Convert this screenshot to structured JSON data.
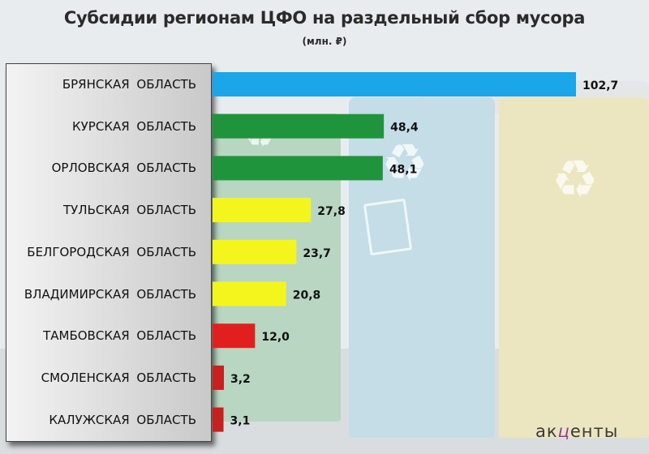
{
  "title": "Субсидии регионам ЦФО на раздельный сбор мусора",
  "subtitle": "(млн. ₽)",
  "logo": {
    "pre": "ак",
    "mid": "ц",
    "post": "енты"
  },
  "chart_data": {
    "type": "bar",
    "orientation": "horizontal",
    "title": "Субсидии регионам ЦФО на раздельный сбор мусора",
    "subtitle": "(млн. ₽)",
    "categories": [
      "БРЯНСКАЯ ОБЛАСТЬ",
      "КУРСКАЯ ОБЛАСТЬ",
      "ОРЛОВСКАЯ ОБЛАСТЬ",
      "ТУЛЬСКАЯ ОБЛАСТЬ",
      "БЕЛГОРОДСКАЯ ОБЛАСТЬ",
      "ВЛАДИМИРСКАЯ ОБЛАСТЬ",
      "ТАМБОВСКАЯ ОБЛАСТЬ",
      "СМОЛЕНСКАЯ ОБЛАСТЬ",
      "КАЛУЖСКАЯ ОБЛАСТЬ"
    ],
    "values": [
      102.7,
      48.4,
      48.1,
      27.8,
      23.7,
      20.8,
      12.0,
      3.2,
      3.1
    ],
    "value_labels": [
      "102,7",
      "48,4",
      "48,1",
      "27,8",
      "23,7",
      "20,8",
      "12,0",
      "3,2",
      "3,1"
    ],
    "bar_colors": [
      "#1aa6e8",
      "#20943c",
      "#20943c",
      "#f5f51e",
      "#f5f51e",
      "#f5f51e",
      "#e21f1f",
      "#c81f1f",
      "#c81f1f"
    ],
    "xlim": [
      0,
      102.7
    ],
    "grid": false,
    "legend": "none"
  }
}
